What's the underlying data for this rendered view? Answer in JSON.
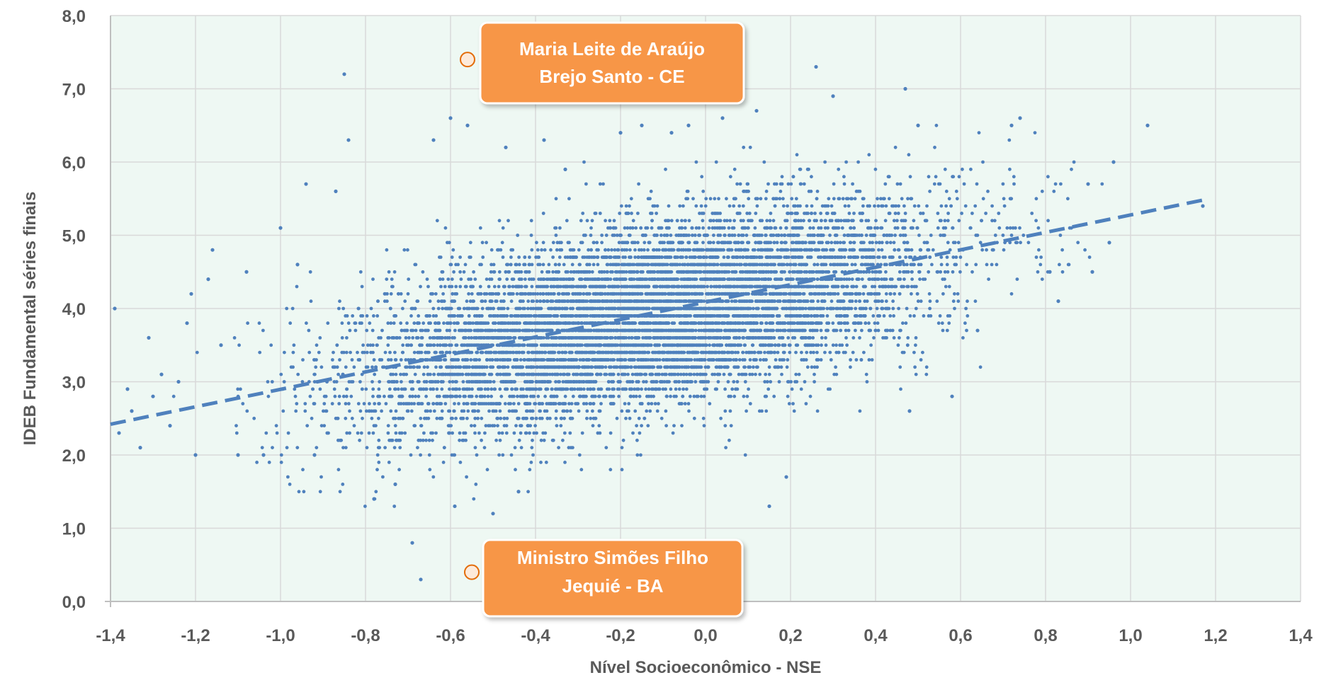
{
  "chart_data": {
    "type": "scatter",
    "xlabel": "Nível Socioeconômico - NSE",
    "ylabel": "IDEB Fundamental séries finais",
    "xlim": [
      -1.4,
      1.4
    ],
    "ylim": [
      0.0,
      8.0
    ],
    "x_ticks": [
      -1.4,
      -1.2,
      -1.0,
      -0.8,
      -0.6,
      -0.4,
      -0.2,
      0.0,
      0.2,
      0.4,
      0.6,
      0.8,
      1.0,
      1.2,
      1.4
    ],
    "x_tick_labels": [
      "-1,4",
      "-1,2",
      "-1,0",
      "-0,8",
      "-0,6",
      "-0,4",
      "-0,2",
      "0,0",
      "0,2",
      "0,4",
      "0,6",
      "0,8",
      "1,0",
      "1,2",
      "1,4"
    ],
    "y_ticks": [
      0,
      1,
      2,
      3,
      4,
      5,
      6,
      7,
      8
    ],
    "y_tick_labels": [
      "0,0",
      "1,0",
      "2,0",
      "3,0",
      "4,0",
      "5,0",
      "6,0",
      "7,0",
      "8,0"
    ],
    "grid": true,
    "colors": {
      "points": "#4F81BD",
      "trendline": "#4F81BD",
      "plot_background": "#EEF8F3",
      "gridlines": "#D9D9D9",
      "callout_fill": "#F79646",
      "marker_fill": "#FDEADA",
      "marker_stroke": "#E36C09"
    },
    "trendline": {
      "style": "dashed",
      "x": [
        -1.4,
        1.17
      ],
      "y": [
        2.42,
        5.48
      ]
    },
    "series": [
      {
        "points": [
          [
            -1.39,
            4.0
          ],
          [
            -1.38,
            2.3
          ],
          [
            -1.36,
            2.9
          ],
          [
            -1.35,
            2.6
          ],
          [
            -1.33,
            2.1
          ],
          [
            -1.31,
            3.6
          ],
          [
            -1.3,
            2.8
          ],
          [
            -1.28,
            3.1
          ],
          [
            -1.26,
            2.4
          ],
          [
            -1.24,
            3.0
          ],
          [
            -1.22,
            3.8
          ],
          [
            -1.21,
            4.2
          ],
          [
            -1.2,
            2.0
          ],
          [
            -1.17,
            4.4
          ],
          [
            -1.16,
            4.8
          ],
          [
            -1.14,
            3.5
          ],
          [
            -1.1,
            2.0
          ],
          [
            -1.08,
            4.5
          ],
          [
            -1.04,
            2.0
          ],
          [
            -1.0,
            5.1
          ],
          [
            -0.96,
            4.6
          ],
          [
            -0.94,
            5.7
          ],
          [
            -0.92,
            2.0
          ],
          [
            -0.87,
            5.6
          ],
          [
            -0.85,
            7.2
          ],
          [
            -0.84,
            6.3
          ],
          [
            -0.78,
            1.4
          ],
          [
            -0.73,
            1.6
          ],
          [
            -0.69,
            0.8
          ],
          [
            -0.67,
            0.3
          ],
          [
            -0.64,
            6.3
          ],
          [
            -0.6,
            6.6
          ],
          [
            -0.59,
            1.3
          ],
          [
            -0.56,
            6.5
          ],
          [
            -0.5,
            1.2
          ],
          [
            -0.47,
            6.2
          ],
          [
            -0.44,
            1.5
          ],
          [
            -0.38,
            6.3
          ],
          [
            -0.33,
            5.9
          ],
          [
            -0.2,
            6.4
          ],
          [
            -0.15,
            6.5
          ],
          [
            -0.08,
            6.4
          ],
          [
            -0.04,
            6.5
          ],
          [
            0.04,
            6.6
          ],
          [
            0.12,
            6.7
          ],
          [
            0.15,
            1.3
          ],
          [
            0.19,
            1.7
          ],
          [
            0.26,
            7.3
          ],
          [
            0.3,
            6.9
          ],
          [
            0.47,
            7.0
          ],
          [
            0.48,
            2.6
          ],
          [
            0.5,
            6.5
          ],
          [
            0.58,
            2.8
          ],
          [
            0.64,
            3.7
          ],
          [
            0.72,
            6.5
          ],
          [
            0.74,
            6.6
          ],
          [
            0.81,
            4.5
          ],
          [
            0.83,
            4.1
          ],
          [
            0.9,
            5.7
          ],
          [
            0.91,
            4.5
          ],
          [
            0.95,
            4.9
          ],
          [
            0.96,
            6.0
          ],
          [
            1.04,
            6.5
          ],
          [
            1.17,
            5.4
          ]
        ]
      }
    ],
    "annotations": [
      {
        "line1": "Maria Leite de Araújo",
        "line2": "Brejo Santo  - CE",
        "x": -0.56,
        "y": 7.4
      },
      {
        "line1": "Ministro Simões Filho",
        "line2": "Jequié - BA",
        "x": -0.55,
        "y": 0.4
      }
    ]
  }
}
